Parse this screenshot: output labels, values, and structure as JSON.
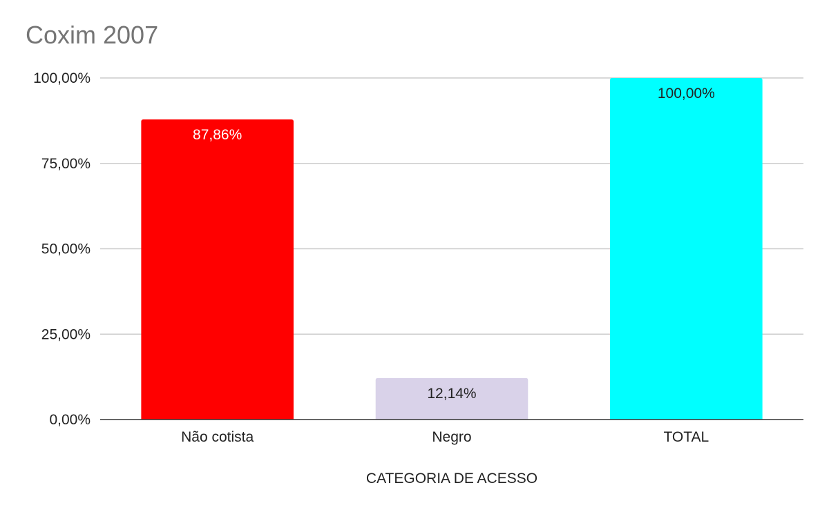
{
  "chart_data": {
    "type": "bar",
    "title": "Coxim 2007",
    "xlabel": "CATEGORIA DE ACESSO",
    "ylabel": "",
    "categories": [
      "Não cotista",
      "Negro",
      "TOTAL"
    ],
    "values": [
      87.86,
      12.14,
      100.0
    ],
    "data_labels": [
      "87,86%",
      "12,14%",
      "100,00%"
    ],
    "bar_colors": [
      "#ff0000",
      "#d9d2e9",
      "#00ffff"
    ],
    "label_colors": [
      "#ffffff",
      "#222222",
      "#222222"
    ],
    "ylim": [
      0,
      100
    ],
    "yticks": [
      0,
      25,
      50,
      75,
      100
    ],
    "ytick_labels": [
      "0,00%",
      "25,00%",
      "50,00%",
      "75,00%",
      "100,00%"
    ],
    "grid": true,
    "legend": "none"
  }
}
